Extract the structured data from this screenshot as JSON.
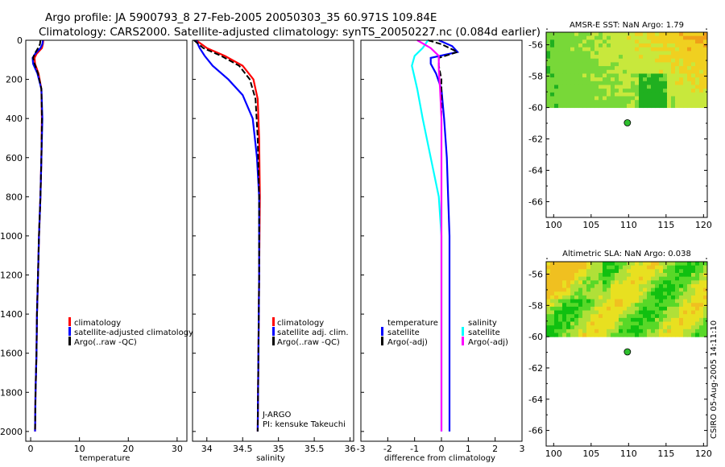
{
  "header": {
    "line1": "Argo profile: JA 5900793_8 27-Feb-2005 20050303_35 60.971S 109.84E",
    "line2": "Climatology: CARS2000. Satellite-adjusted climatology: synTS_20050227.nc (0.084d earlier)"
  },
  "side_stamp": "CSIRO 05-Aug-2005 14:11:10",
  "colors": {
    "climatology": "#ff0000",
    "satellite": "#0000ff",
    "argo": "#000000",
    "salinity_sat": "#00ffff",
    "salinity_argo": "#ff00ff",
    "argo_marker": "#2fbf2f"
  },
  "chart_data": [
    {
      "id": "temperature",
      "type": "line",
      "xlabel": "temperature",
      "xlim": [
        -1,
        32
      ],
      "ylim": [
        2050,
        0
      ],
      "xticks": [
        0,
        10,
        20,
        30
      ],
      "yticks": [
        0,
        200,
        400,
        600,
        800,
        1000,
        1200,
        1400,
        1600,
        1800,
        2000
      ],
      "legend": [
        "climatology",
        "satellite-adjusted climatology",
        "Argo(..raw -QC)"
      ],
      "series": [
        {
          "name": "climatology",
          "color": "#ff0000",
          "points": [
            [
              2.6,
              0
            ],
            [
              2.5,
              20
            ],
            [
              2.3,
              40
            ],
            [
              1.2,
              70
            ],
            [
              0.8,
              90
            ],
            [
              0.9,
              120
            ],
            [
              1.6,
              170
            ],
            [
              2.2,
              250
            ],
            [
              2.3,
              400
            ],
            [
              2.2,
              600
            ],
            [
              2.0,
              800
            ],
            [
              1.7,
              1000
            ],
            [
              1.5,
              1200
            ],
            [
              1.3,
              1400
            ],
            [
              1.2,
              1600
            ],
            [
              1.0,
              1800
            ],
            [
              0.9,
              2000
            ]
          ]
        },
        {
          "name": "satellite-adjusted climatology",
          "color": "#0000ff",
          "points": [
            [
              2.5,
              0
            ],
            [
              2.4,
              20
            ],
            [
              2.0,
              40
            ],
            [
              0.9,
              70
            ],
            [
              0.4,
              90
            ],
            [
              0.5,
              120
            ],
            [
              1.4,
              170
            ],
            [
              2.2,
              250
            ],
            [
              2.4,
              400
            ],
            [
              2.2,
              600
            ],
            [
              2.0,
              800
            ],
            [
              1.7,
              1000
            ],
            [
              1.5,
              1200
            ],
            [
              1.3,
              1400
            ],
            [
              1.2,
              1600
            ],
            [
              1.0,
              1800
            ],
            [
              0.9,
              2000
            ]
          ]
        },
        {
          "name": "Argo(..raw -QC)",
          "color": "#000000",
          "points": [
            [
              2.0,
              0
            ],
            [
              1.9,
              20
            ],
            [
              1.5,
              40
            ],
            [
              0.8,
              70
            ],
            [
              0.5,
              90
            ],
            [
              0.8,
              120
            ],
            [
              1.5,
              170
            ],
            [
              2.2,
              250
            ],
            [
              2.3,
              400
            ],
            [
              2.2,
              600
            ],
            [
              2.0,
              800
            ],
            [
              1.7,
              1000
            ],
            [
              1.5,
              1200
            ],
            [
              1.3,
              1400
            ],
            [
              1.2,
              1600
            ],
            [
              1.0,
              1800
            ],
            [
              0.9,
              2000
            ]
          ]
        }
      ]
    },
    {
      "id": "salinity",
      "type": "line",
      "xlabel": "salinity",
      "xlim": [
        33.8,
        36.05
      ],
      "ylim": [
        2050,
        0
      ],
      "xticks": [
        34,
        34.5,
        35,
        35.5,
        36
      ],
      "legend": [
        "climatology",
        "satellite adj. clim.",
        "Argo(..raw -QC)"
      ],
      "annotation": [
        "J-ARGO",
        "PI: kensuke Takeuchi"
      ],
      "series": [
        {
          "name": "climatology",
          "color": "#ff0000",
          "points": [
            [
              33.85,
              0
            ],
            [
              34.0,
              40
            ],
            [
              34.25,
              80
            ],
            [
              34.5,
              130
            ],
            [
              34.65,
              200
            ],
            [
              34.71,
              300
            ],
            [
              34.73,
              500
            ],
            [
              34.74,
              800
            ],
            [
              34.73,
              1200
            ],
            [
              34.72,
              1600
            ],
            [
              34.71,
              2000
            ]
          ]
        },
        {
          "name": "satellite adj. clim.",
          "color": "#0000ff",
          "points": [
            [
              33.85,
              0
            ],
            [
              33.9,
              40
            ],
            [
              33.97,
              80
            ],
            [
              34.08,
              130
            ],
            [
              34.3,
              200
            ],
            [
              34.5,
              280
            ],
            [
              34.64,
              400
            ],
            [
              34.7,
              600
            ],
            [
              34.73,
              800
            ],
            [
              34.73,
              1200
            ],
            [
              34.72,
              1600
            ],
            [
              34.71,
              2000
            ]
          ]
        },
        {
          "name": "Argo(..raw -QC)",
          "color": "#000000",
          "points": [
            [
              33.82,
              0
            ],
            [
              33.95,
              40
            ],
            [
              34.2,
              80
            ],
            [
              34.45,
              130
            ],
            [
              34.6,
              200
            ],
            [
              34.68,
              300
            ],
            [
              34.71,
              500
            ],
            [
              34.73,
              800
            ],
            [
              34.73,
              1200
            ],
            [
              34.72,
              1600
            ],
            [
              34.71,
              2000
            ]
          ]
        }
      ]
    },
    {
      "id": "difference",
      "type": "line",
      "xlabel": "difference from climatology",
      "xlim": [
        -3,
        3
      ],
      "ylim": [
        2050,
        0
      ],
      "xticks": [
        -3,
        -2,
        -1,
        0,
        1,
        2,
        3
      ],
      "legend_left": [
        "temperature",
        "satellite",
        "Argo(-adj)"
      ],
      "legend_right": [
        "salinity",
        "satellite",
        "Argo(-adj)"
      ],
      "series": [
        {
          "name": "temperature satellite",
          "color": "#0000ff",
          "points": [
            [
              -0.1,
              0
            ],
            [
              0.4,
              30
            ],
            [
              0.6,
              60
            ],
            [
              -0.4,
              90
            ],
            [
              -0.4,
              120
            ],
            [
              -0.2,
              170
            ],
            [
              0.0,
              250
            ],
            [
              0.1,
              400
            ],
            [
              0.2,
              600
            ],
            [
              0.25,
              800
            ],
            [
              0.3,
              1000
            ],
            [
              0.3,
              1200
            ],
            [
              0.3,
              1400
            ],
            [
              0.3,
              1600
            ],
            [
              0.3,
              1800
            ],
            [
              0.3,
              2000
            ]
          ]
        },
        {
          "name": "temperature Argo(-adj)",
          "color": "#000000",
          "points": [
            [
              -0.5,
              0
            ],
            [
              0.0,
              20
            ],
            [
              0.3,
              40
            ],
            [
              0.6,
              60
            ],
            [
              -0.1,
              90
            ],
            [
              -0.1,
              130
            ],
            [
              0.0,
              200
            ],
            [
              0.0,
              400
            ],
            [
              0.0,
              600
            ],
            [
              0.0,
              800
            ],
            [
              0.0,
              1000
            ],
            [
              0.0,
              1200
            ],
            [
              0.0,
              1400
            ],
            [
              0.0,
              1600
            ],
            [
              0.0,
              1800
            ],
            [
              0.0,
              2000
            ]
          ]
        },
        {
          "name": "salinity satellite",
          "color": "#00ffff",
          "points": [
            [
              -0.5,
              0
            ],
            [
              -0.7,
              40
            ],
            [
              -1.0,
              80
            ],
            [
              -1.1,
              130
            ],
            [
              -0.9,
              250
            ],
            [
              -0.7,
              400
            ],
            [
              -0.4,
              600
            ],
            [
              -0.1,
              800
            ],
            [
              0.0,
              1000
            ],
            [
              0.0,
              1200
            ],
            [
              0.0,
              1600
            ],
            [
              0.0,
              2000
            ]
          ]
        },
        {
          "name": "salinity Argo(-adj)",
          "color": "#ff00ff",
          "points": [
            [
              -0.9,
              0
            ],
            [
              -0.4,
              40
            ],
            [
              -0.1,
              80
            ],
            [
              -0.1,
              150
            ],
            [
              -0.05,
              250
            ],
            [
              0.0,
              400
            ],
            [
              0.0,
              600
            ],
            [
              0.0,
              800
            ],
            [
              0.0,
              1200
            ],
            [
              0.0,
              1600
            ],
            [
              0.0,
              2000
            ]
          ]
        }
      ]
    },
    {
      "id": "sst_map",
      "type": "heatmap",
      "title": "AMSR-E SST: NaN Argo: 1.79",
      "xlim": [
        99,
        120.5
      ],
      "ylim": [
        -67,
        -55.2
      ],
      "xticks": [
        100,
        105,
        110,
        115,
        120
      ],
      "yticks": [
        -56,
        -58,
        -60,
        -62,
        -64,
        -66
      ],
      "data_lat_range": [
        -55.2,
        -60
      ],
      "palette": [
        "#20b020",
        "#78d838",
        "#c8e83c",
        "#f0d020",
        "#f0a018"
      ],
      "argo_position": [
        109.84,
        -60.971
      ]
    },
    {
      "id": "sla_map",
      "type": "heatmap",
      "title": "Altimetric SLA: NaN Argo: 0.038",
      "xlim": [
        99,
        120.5
      ],
      "ylim": [
        -67,
        -55.2
      ],
      "xticks": [
        100,
        105,
        110,
        115,
        120
      ],
      "yticks": [
        -56,
        -58,
        -60,
        -62,
        -64,
        -66
      ],
      "data_lat_range": [
        -55.2,
        -60
      ],
      "palette": [
        "#10c010",
        "#58d828",
        "#b0e038",
        "#e8e020",
        "#f0c020"
      ],
      "argo_position": [
        109.84,
        -60.971
      ]
    }
  ]
}
